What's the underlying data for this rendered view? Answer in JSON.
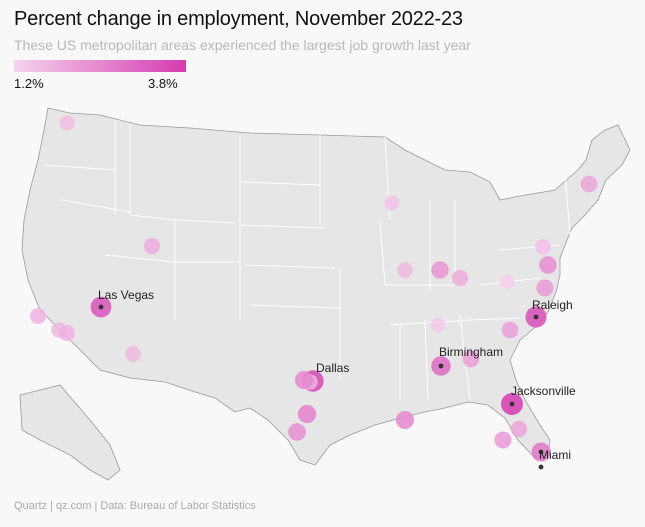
{
  "header": {
    "title": "Percent change in employment, November 2022-23",
    "subtitle": "These US metropolitan areas experienced the largest job growth last year"
  },
  "legend": {
    "min_label": "1.2%",
    "max_label": "3.8%",
    "color_low": "#f3c8e8",
    "color_high": "#d43bb0"
  },
  "colors": {
    "land": "#e6e6e6",
    "state_border": "#ffffff",
    "country_border": "#9a9a9a",
    "accent": "#d43bb0"
  },
  "map": {
    "labels": {
      "las_vegas": "Las Vegas",
      "dallas": "Dallas",
      "raleigh": "Raleigh",
      "birmingham": "Birmingham",
      "jacksonville": "Jacksonville",
      "miami": "Miami"
    },
    "points": [
      {
        "metro": "Las Vegas",
        "pct": 3.4
      },
      {
        "metro": "Dallas",
        "pct": 3.6
      },
      {
        "metro": "Raleigh",
        "pct": 3.5
      },
      {
        "metro": "Birmingham",
        "pct": 3.0
      },
      {
        "metro": "Jacksonville",
        "pct": 3.8
      },
      {
        "metro": "Miami",
        "pct": 2.8
      },
      {
        "pct": 1.6
      },
      {
        "pct": 1.9
      },
      {
        "pct": 1.8
      },
      {
        "pct": 1.7
      },
      {
        "pct": 1.8
      },
      {
        "pct": 1.7
      },
      {
        "pct": 2.6
      },
      {
        "pct": 2.4
      },
      {
        "pct": 2.5
      },
      {
        "pct": 1.5
      },
      {
        "pct": 1.7
      },
      {
        "pct": 2.3
      },
      {
        "pct": 1.9
      },
      {
        "pct": 1.4
      },
      {
        "pct": 1.3
      },
      {
        "pct": 2.4
      },
      {
        "pct": 2.2
      },
      {
        "pct": 2.1
      },
      {
        "pct": 2.1
      },
      {
        "pct": 2.0
      },
      {
        "pct": 2.2
      },
      {
        "pct": 1.7
      },
      {
        "pct": 2.0
      },
      {
        "pct": 1.7
      },
      {
        "pct": 2.5
      },
      {
        "pct": 1.4
      }
    ]
  },
  "footer": {
    "credit": "Quartz | qz.com | Data: Bureau of Labor Statistics"
  }
}
